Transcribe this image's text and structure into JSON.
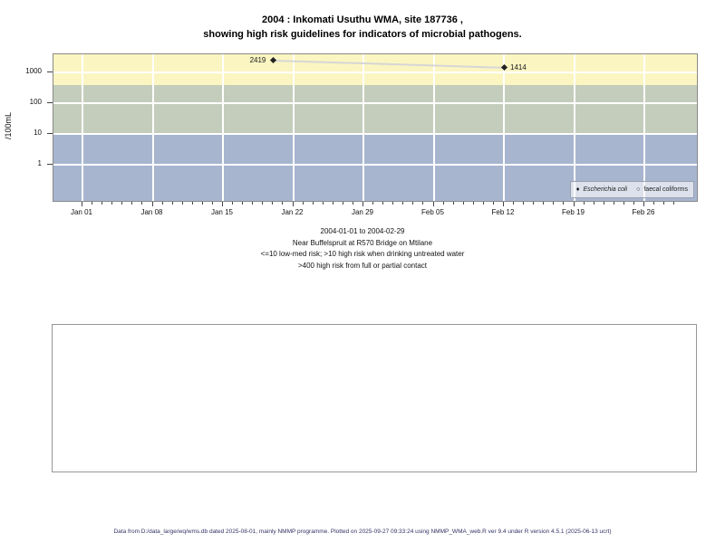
{
  "title": {
    "line1": "2004 : Inkomati Usuthu WMA, site 187736 ,",
    "line2": "showing high risk guidelines for indicators of microbial pathogens."
  },
  "chart_data": {
    "type": "scatter",
    "title": "2004 : Inkomati Usuthu WMA, site 187736 , showing high risk guidelines for indicators of microbial pathogens.",
    "ylabel": "/100mL",
    "y_scale": "log10",
    "y_ticks": [
      1,
      10,
      100,
      1000
    ],
    "x_axis": {
      "start": "2004-01-01",
      "end": "2004-02-29",
      "n_days": 60,
      "minor_tick_every_days": 1,
      "major_ticks": [
        {
          "label": "Jan 01",
          "day": 0
        },
        {
          "label": "Jan 08",
          "day": 7
        },
        {
          "label": "Jan 15",
          "day": 14
        },
        {
          "label": "Jan 22",
          "day": 21
        },
        {
          "label": "Jan 29",
          "day": 28
        },
        {
          "label": "Feb 05",
          "day": 35
        },
        {
          "label": "Feb 12",
          "day": 42
        },
        {
          "label": "Feb 19",
          "day": 49
        },
        {
          "label": "Feb 26",
          "day": 56
        }
      ]
    },
    "series": [
      {
        "name": "Escherichia coli",
        "marker": "filled-diamond",
        "points": [
          {
            "date": "2004-01-20",
            "day": 19,
            "value": 2419,
            "label": "2419",
            "label_side": "left"
          },
          {
            "date": "2004-02-12",
            "day": 42,
            "value": 1414,
            "label": "1414",
            "label_side": "right"
          }
        ]
      },
      {
        "name": "faecal coliforms",
        "marker": "open-circle",
        "points": []
      }
    ],
    "join_line_color": "#d6d6d6",
    "risk_bands": [
      {
        "range": "> 400",
        "meaning": "high risk from full or partial contact",
        "color": "#FBF5C2",
        "upper": null,
        "lower": 400
      },
      {
        "range": "10 - 400",
        "meaning": "high risk when drinking untreated water",
        "color": "#C4CDBC",
        "upper": 400,
        "lower": 10
      },
      {
        "range": "<= 10",
        "meaning": "low-med risk",
        "color": "#A7B5CF",
        "upper": 10,
        "lower": null
      }
    ],
    "grid": {
      "color": "#ffffff",
      "vertical_at_major_ticks": true,
      "horizontal_at_y_ticks": true
    },
    "legend": {
      "position": "bottom-right-inside",
      "items": [
        {
          "label": "Escherichia coli",
          "marker": "filled-diamond",
          "italic": true
        },
        {
          "label": "faecal coliforms",
          "marker": "open-circle",
          "italic": false
        }
      ]
    }
  },
  "legend": {
    "item1": "Escherichia coli",
    "item2": "faecal coliforms",
    "marker1": "♦",
    "marker2": "○"
  },
  "caption": {
    "line1": "2004-01-01 to 2004-02-29",
    "line2": "Near Buffelspruit at R570 Bridge on Mtilane",
    "line3": "<=10 low-med risk; >10 high risk when drinking untreated water",
    "line4": ">400 high risk from full or partial contact"
  },
  "footer": {
    "text": "Data from D:/data_large/wq/wms.db dated 2025-08-01, mainly NMMP programme. Plotted on 2025-09-27 09:33:24 using NMMP_WMA_web.R ver 9.4 under R version 4.5.1 (2025-06-13 ucrt)"
  }
}
